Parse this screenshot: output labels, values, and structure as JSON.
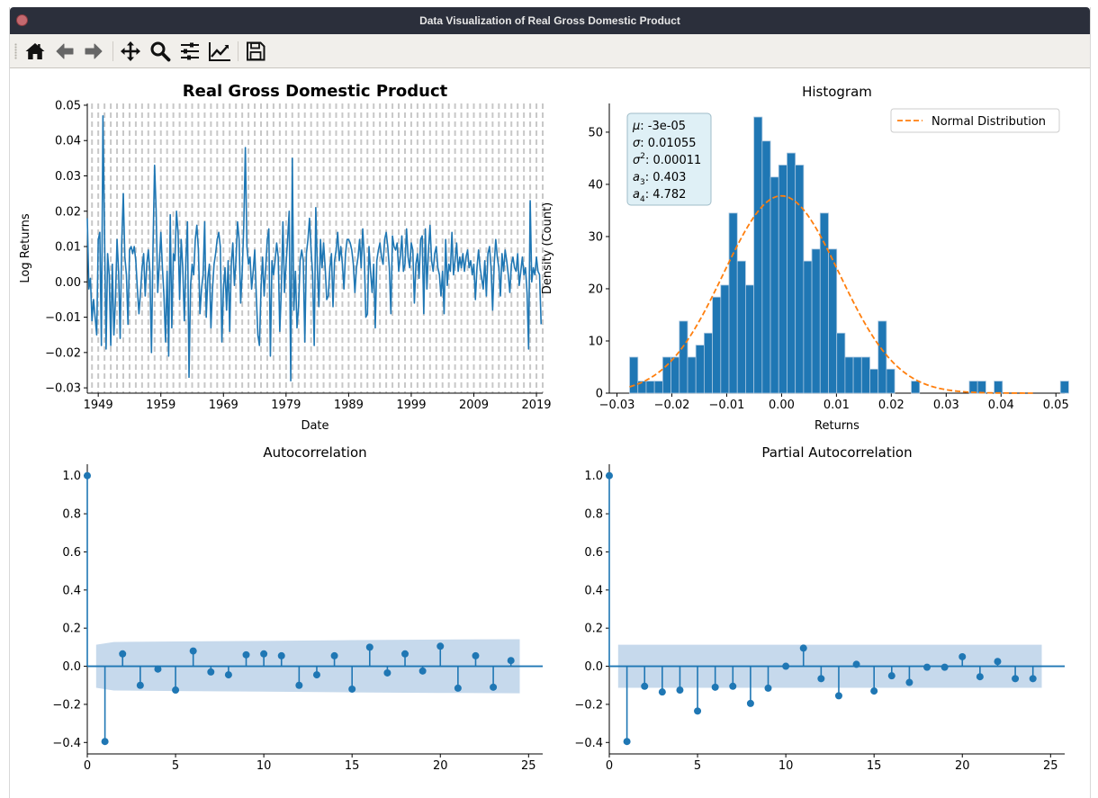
{
  "window": {
    "title": "Data Visualization of Real Gross Domestic Product"
  },
  "toolbar": {
    "buttons": [
      {
        "name": "home-icon",
        "tooltip": "Home"
      },
      {
        "name": "back-icon",
        "tooltip": "Back"
      },
      {
        "name": "forward-icon",
        "tooltip": "Forward"
      },
      {
        "name": "pan-icon",
        "tooltip": "Pan"
      },
      {
        "name": "zoom-icon",
        "tooltip": "Zoom"
      },
      {
        "name": "configure-subplots-icon",
        "tooltip": "Configure subplots"
      },
      {
        "name": "edit-axis-icon",
        "tooltip": "Edit axis"
      },
      {
        "name": "save-icon",
        "tooltip": "Save"
      }
    ]
  },
  "colors": {
    "series": "#1f77b4",
    "normal": "#ff7f0e",
    "conf_band": "#c6d9ec",
    "stats_box": "#dff0f6",
    "grid_dash": "#c8c8c8"
  },
  "chart_data": [
    {
      "type": "line",
      "title": "Real Gross Domestic Product",
      "xlabel": "Date",
      "ylabel": "Log Returns",
      "xlim": [
        1947.25,
        2020.0
      ],
      "ylim": [
        -0.0315,
        0.0505
      ],
      "x_ticks": [
        1949,
        1959,
        1969,
        1979,
        1989,
        1999,
        2009,
        2019
      ],
      "y_ticks": [
        -0.03,
        -0.02,
        -0.01,
        0.0,
        0.01,
        0.02,
        0.03,
        0.04,
        0.05
      ],
      "x_tick_labels": [
        "1949",
        "1959",
        "1969",
        "1979",
        "1989",
        "1999",
        "2009",
        "2019"
      ],
      "y_tick_labels": [
        "−0.03",
        "−0.02",
        "−0.01",
        "0.00",
        "0.01",
        "0.02",
        "0.03",
        "0.04",
        "0.05"
      ],
      "grid": "vertical dashed lines at each year",
      "x_start": 1947.25,
      "x_step": 0.25,
      "values": [
        0.018,
        -0.002,
        0.001,
        -0.011,
        -0.005,
        -0.01,
        -0.015,
        0.012,
        0.014,
        -0.018,
        0.047,
        0.014,
        -0.019,
        0.008,
        0.002,
        -0.018,
        0.005,
        -0.015,
        -0.005,
        0.012,
        0.003,
        -0.016,
        0.011,
        0.025,
        0.007,
        0.002,
        -0.012,
        0.009,
        0.01,
        0.008,
        0.01,
        0.006,
        -0.002,
        -0.009,
        -0.003,
        0.004,
        0.008,
        -0.004,
        0.005,
        0.009,
        0.003,
        -0.02,
        0.01,
        0.033,
        0.02,
        -0.003,
        0.005,
        0.014,
        0.004,
        -0.004,
        -0.017,
        0.003,
        -0.021,
        0.019,
        -0.013,
        0.008,
        0.006,
        0.02,
        0.014,
        -0.005,
        0.012,
        0.004,
        -0.011,
        0.006,
        0.017,
        -0.027,
        -0.001,
        0.005,
        0.002,
        0.012,
        0.016,
        0.009,
        -0.009,
        -0.002,
        0.002,
        0.017,
        -0.01,
        0.001,
        0.005,
        -0.013,
        -0.002,
        0.005,
        0.008,
        0.012,
        0.014,
        0.01,
        -0.017,
        -0.002,
        0.004,
        -0.008,
        0.006,
        -0.014,
        0.005,
        0.011,
        -0.001,
        0.006,
        0.017,
        0.012,
        -0.006,
        0.003,
        0.016,
        0.038,
        0.01,
        0.005,
        0.007,
        -0.002,
        0.003,
        0.009,
        -0.004,
        -0.015,
        -0.018,
        -0.002,
        0.007,
        -0.004,
        0.004,
        0.012,
        0.015,
        -0.021,
        0.006,
        0.002,
        0.006,
        0.011,
        0.007,
        -0.014,
        -0.002,
        0.017,
        -0.003,
        0.005,
        0.012,
        0.02,
        -0.028,
        0.035,
        -0.008,
        0.003,
        -0.013,
        -0.007,
        0.006,
        0.009,
        0.006,
        -0.017,
        0.008,
        0.012,
        0.018,
        0.009,
        0.002,
        -0.018,
        0.021,
        0.004,
        -0.007,
        0.012,
        0.004,
        0.011,
        0.004,
        -0.005,
        -0.004,
        0.004,
        0.008,
        -0.007,
        0.006,
        0.009,
        0.014,
        0.006,
        0.01,
        0.005,
        -0.002,
        0.008,
        0.012,
        0.012,
        0.011,
        0.009,
        0.005,
        -0.003,
        0.004,
        0.007,
        0.012,
        0.004,
        0.015,
        0.007,
        -0.01,
        -0.009,
        0.01,
        0.003,
        -0.003,
        0.005,
        -0.013,
        0.006,
        0.009,
        0.011,
        0.007,
        0.005,
        0.012,
        0.014,
        0.01,
        0.004,
        -0.009,
        0.013,
        0.01,
        0.009,
        0.011,
        0.003,
        0.007,
        0.013,
        0.003,
        0.005,
        0.015,
        0.007,
        0.004,
        0.011,
        0.009,
        -0.006,
        0.005,
        0.008,
        0.001,
        0.012,
        0.013,
        -0.009,
        0.015,
        -0.002,
        0.009,
        0.016,
        0.006,
        0.003,
        0.008,
        0.01,
        0.004,
        0.002,
        -0.004,
        0.003,
        -0.009,
        0.012,
        -0.001,
        0.005,
        0.003,
        0.014,
        0.002,
        0.006,
        0.011,
        0.003,
        0.007,
        0.004,
        0.008,
        0.003,
        0.007,
        0.009,
        0.004,
        0.006,
        0.002,
        0.005,
        -0.005,
        0.004,
        0.009,
        0.004,
        0.001,
        -0.002,
        0.006,
        -0.004,
        0.008,
        0.01,
        0.004,
        -0.008,
        0.005,
        0.012,
        0.007,
        0.004,
        -0.004,
        0.008,
        0.003,
        0.009,
        0.006,
        0.002,
        -0.003,
        0.005,
        0.007,
        0.004,
        0.003,
        0.008,
        -0.001,
        0.003,
        0.007,
        0.002,
        0.004,
        -0.003,
        -0.019,
        0.023,
        0.0,
        0.004,
        0.002,
        0.007,
        0.003,
        0.002,
        -0.012
      ],
      "series": [
        {
          "values": "values"
        }
      ]
    },
    {
      "type": "bar",
      "title": "Histogram",
      "xlabel": "Returns",
      "ylabel": "Density (Count)",
      "xlim": [
        -0.0314,
        0.0516
      ],
      "ylim": [
        0,
        55.5
      ],
      "x_ticks": [
        -0.03,
        -0.02,
        -0.01,
        0.0,
        0.01,
        0.02,
        0.03,
        0.04,
        0.05
      ],
      "x_tick_labels": [
        "−0.03",
        "−0.02",
        "−0.01",
        "0.00",
        "0.01",
        "0.02",
        "0.03",
        "0.04",
        "0.05"
      ],
      "y_ticks": [
        0,
        10,
        20,
        30,
        40,
        50
      ],
      "y_tick_labels": [
        "0",
        "10",
        "20",
        "30",
        "40",
        "50"
      ],
      "bin_start": -0.0277,
      "bin_width": 0.00151,
      "counts": [
        6.9,
        2.3,
        2.3,
        2.3,
        6.9,
        6.9,
        13.8,
        6.9,
        9.2,
        11.5,
        18.4,
        20.7,
        34.5,
        25.3,
        20.7,
        52.9,
        48.3,
        41.4,
        43.7,
        46.0,
        43.7,
        25.3,
        27.6,
        34.5,
        27.6,
        11.5,
        6.9,
        6.9,
        6.9,
        4.6,
        13.8,
        4.6,
        0,
        0,
        2.3,
        0,
        0,
        0,
        0,
        0,
        0,
        2.3,
        2.3,
        0,
        2.3,
        0,
        0,
        0,
        0,
        0,
        0,
        0,
        2.3
      ],
      "legend": {
        "label": "Normal Distribution",
        "placement": "top-right"
      },
      "normal": {
        "mu": -3e-05,
        "sigma": 0.01055
      },
      "stats": [
        {
          "sym": "μ",
          "sup": "",
          "sub": "",
          "value": "-3e-05"
        },
        {
          "sym": "σ",
          "sup": "",
          "sub": "",
          "value": "0.01055"
        },
        {
          "sym": "σ",
          "sup": "2",
          "sub": "",
          "value": "0.00011"
        },
        {
          "sym": "a",
          "sup": "",
          "sub": "3",
          "value": "0.403"
        },
        {
          "sym": "a",
          "sup": "",
          "sub": "4",
          "value": "4.782"
        }
      ]
    },
    {
      "type": "scatter",
      "subtype": "stem",
      "title": "Autocorrelation",
      "xlim": [
        0,
        25.8
      ],
      "ylim": [
        -0.46,
        1.06
      ],
      "x_ticks": [
        0,
        5,
        10,
        15,
        20,
        25
      ],
      "x_tick_labels": [
        "0",
        "5",
        "10",
        "15",
        "20",
        "25"
      ],
      "y_ticks": [
        -0.4,
        -0.2,
        0.0,
        0.2,
        0.4,
        0.6,
        0.8,
        1.0
      ],
      "y_tick_labels": [
        "−0.4",
        "−0.2",
        "0.0",
        "0.2",
        "0.4",
        "0.6",
        "0.8",
        "1.0"
      ],
      "lags": [
        0,
        1,
        2,
        3,
        4,
        5,
        6,
        7,
        8,
        9,
        10,
        11,
        12,
        13,
        14,
        15,
        16,
        17,
        18,
        19,
        20,
        21,
        22,
        23,
        24
      ],
      "values": [
        1.0,
        -0.395,
        0.065,
        -0.1,
        -0.015,
        -0.125,
        0.08,
        -0.03,
        -0.045,
        0.06,
        0.065,
        0.055,
        -0.1,
        -0.045,
        0.055,
        -0.12,
        0.1,
        -0.035,
        0.065,
        -0.025,
        0.105,
        -0.115,
        0.055,
        -0.11,
        0.03
      ],
      "conf_band": {
        "x": [
          0.5,
          1.5,
          2.5,
          5,
          10,
          15,
          20,
          24.5
        ],
        "upper": [
          0.113,
          0.127,
          0.128,
          0.13,
          0.133,
          0.137,
          0.14,
          0.142
        ]
      }
    },
    {
      "type": "scatter",
      "subtype": "stem",
      "title": "Partial Autocorrelation",
      "xlim": [
        0,
        25.8
      ],
      "ylim": [
        -0.46,
        1.06
      ],
      "x_ticks": [
        0,
        5,
        10,
        15,
        20,
        25
      ],
      "x_tick_labels": [
        "0",
        "5",
        "10",
        "15",
        "20",
        "25"
      ],
      "y_ticks": [
        -0.4,
        -0.2,
        0.0,
        0.2,
        0.4,
        0.6,
        0.8,
        1.0
      ],
      "y_tick_labels": [
        "−0.4",
        "−0.2",
        "0.0",
        "0.2",
        "0.4",
        "0.6",
        "0.8",
        "1.0"
      ],
      "lags": [
        0,
        1,
        2,
        3,
        4,
        5,
        6,
        7,
        8,
        9,
        10,
        11,
        12,
        13,
        14,
        15,
        16,
        17,
        18,
        19,
        20,
        21,
        22,
        23,
        24
      ],
      "values": [
        1.0,
        -0.395,
        -0.105,
        -0.135,
        -0.125,
        -0.235,
        -0.11,
        -0.105,
        -0.195,
        -0.115,
        0.0,
        0.095,
        -0.065,
        -0.155,
        0.01,
        -0.13,
        -0.05,
        -0.085,
        -0.005,
        -0.005,
        0.05,
        -0.055,
        0.025,
        -0.065,
        -0.065
      ],
      "conf_band": {
        "x": [
          0.5,
          24.5
        ],
        "upper": [
          0.113,
          0.113
        ]
      }
    }
  ]
}
